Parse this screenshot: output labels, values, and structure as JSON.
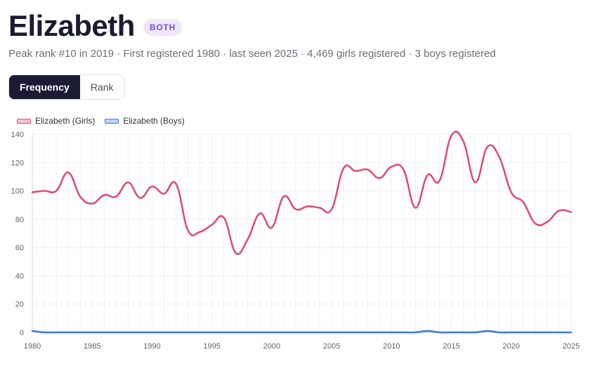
{
  "header": {
    "name": "Elizabeth",
    "badge": "BOTH",
    "subtitle": "Peak rank #10 in 2019 · First registered 1980 · last seen 2025 · 4,469 girls registered · 3 boys registered"
  },
  "toggle": {
    "frequency_label": "Frequency",
    "rank_label": "Rank",
    "active": "Frequency"
  },
  "colors": {
    "girls": "#e0487a",
    "boys": "#3b7ad9",
    "grid": "#efefef"
  },
  "chart_data": {
    "type": "line",
    "x": [
      1980,
      1981,
      1982,
      1983,
      1984,
      1985,
      1986,
      1987,
      1988,
      1989,
      1990,
      1991,
      1992,
      1993,
      1994,
      1995,
      1996,
      1997,
      1998,
      1999,
      2000,
      2001,
      2002,
      2003,
      2004,
      2005,
      2006,
      2007,
      2008,
      2009,
      2010,
      2011,
      2012,
      2013,
      2014,
      2015,
      2016,
      2017,
      2018,
      2019,
      2020,
      2021,
      2022,
      2023,
      2024,
      2025
    ],
    "series": [
      {
        "name": "Elizabeth (Girls)",
        "values": [
          99,
          100,
          100,
          113,
          96,
          91,
          97,
          96,
          106,
          95,
          103,
          98,
          105,
          72,
          71,
          76,
          81,
          56,
          66,
          84,
          74,
          96,
          87,
          89,
          88,
          87,
          116,
          114,
          115,
          109,
          117,
          115,
          88,
          111,
          107,
          139,
          135,
          106,
          131,
          124,
          99,
          92,
          77,
          78,
          86,
          85
        ]
      },
      {
        "name": "Elizabeth (Boys)",
        "values": [
          1,
          0,
          0,
          0,
          0,
          0,
          0,
          0,
          0,
          0,
          0,
          0,
          0,
          0,
          0,
          0,
          0,
          0,
          0,
          0,
          0,
          0,
          0,
          0,
          0,
          0,
          0,
          0,
          0,
          0,
          0,
          0,
          0,
          1,
          0,
          0,
          0,
          0,
          1,
          0,
          0,
          0,
          0,
          0,
          0,
          0
        ]
      }
    ],
    "ylim": [
      0,
      140
    ],
    "yticks": [
      0,
      20,
      40,
      60,
      80,
      100,
      120,
      140
    ],
    "xticks": [
      1980,
      1985,
      1990,
      1995,
      2000,
      2005,
      2010,
      2015,
      2020,
      2025
    ],
    "xlim": [
      1980,
      2025
    ],
    "grid": true,
    "legend_position": "top-left"
  }
}
